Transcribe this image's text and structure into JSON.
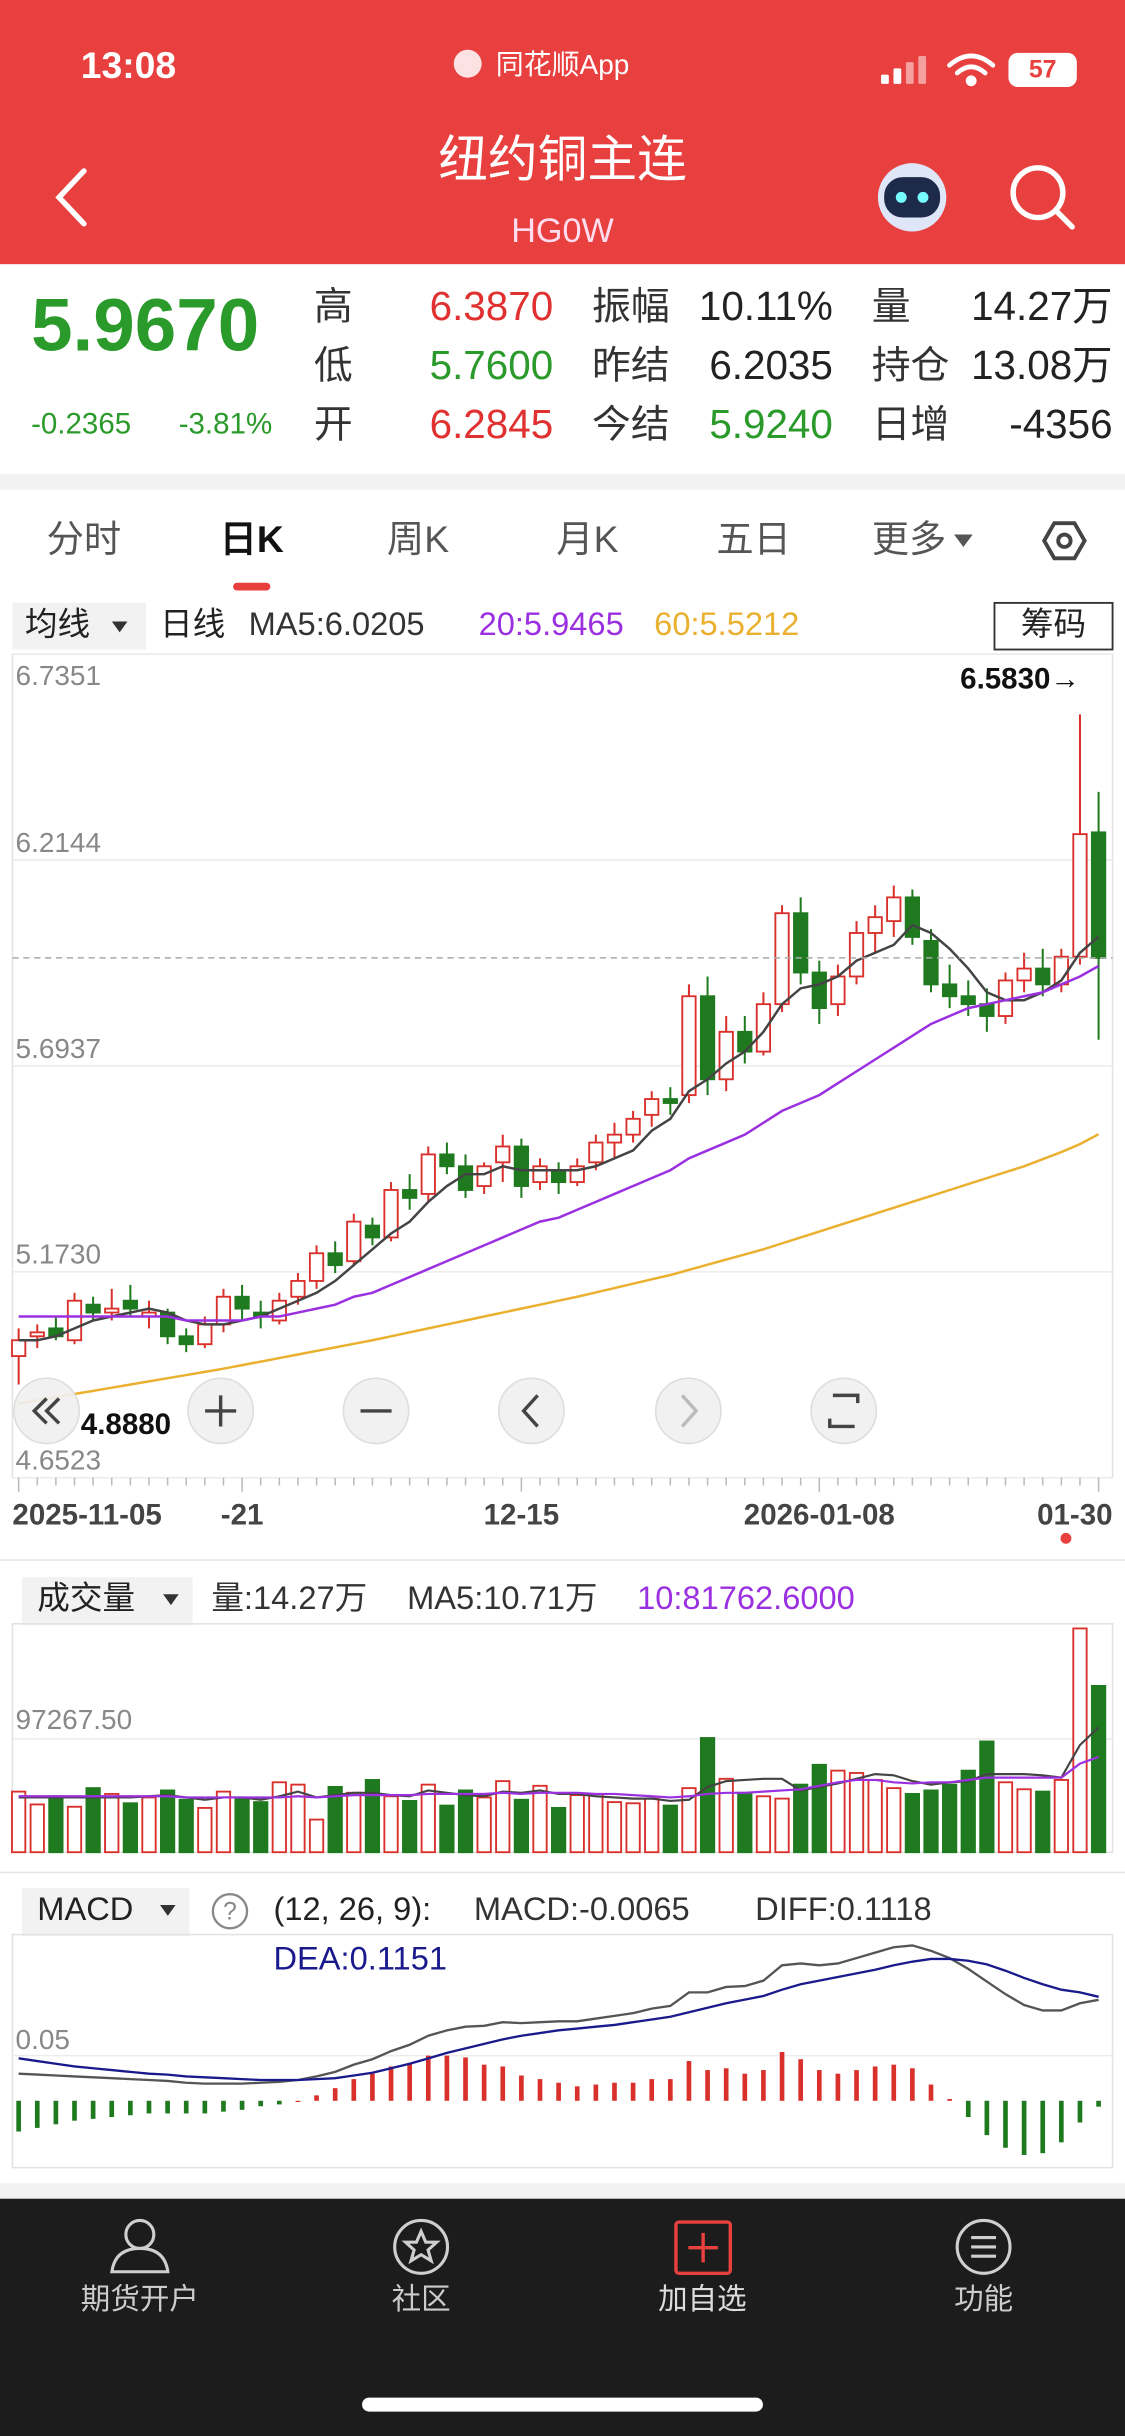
{
  "status_bar": {
    "time": "13:08",
    "app": "同花顺App",
    "battery": "57"
  },
  "header": {
    "title": "纽约铜主连",
    "code": "HG0W"
  },
  "quote": {
    "price": "5.9670",
    "change": "-0.2365",
    "change_pct": "-3.81%",
    "color": "#2a9a2a",
    "columns": [
      [
        {
          "label": "高",
          "value": "6.3870",
          "color": "#e03030"
        },
        {
          "label": "低",
          "value": "5.7600",
          "color": "#2a9a2a"
        },
        {
          "label": "开",
          "value": "6.2845",
          "color": "#e03030"
        }
      ],
      [
        {
          "label": "振幅",
          "value": "10.11%",
          "color": "#222"
        },
        {
          "label": "昨结",
          "value": "6.2035",
          "color": "#222"
        },
        {
          "label": "今结",
          "value": "5.9240",
          "color": "#2a9a2a"
        }
      ],
      [
        {
          "label": "量",
          "value": "14.27万",
          "color": "#222"
        },
        {
          "label": "持仓",
          "value": "13.08万",
          "color": "#222"
        },
        {
          "label": "日增",
          "value": "-4356",
          "color": "#222"
        }
      ]
    ]
  },
  "tabs": [
    "分时",
    "日K",
    "周K",
    "月K",
    "五日",
    "更多"
  ],
  "selected_tab": 1,
  "nav": [
    "期货开户",
    "社区",
    "加自选",
    "功能"
  ],
  "chart_data": [
    {
      "type": "candlestick",
      "ma_label": "均线",
      "period": "日线",
      "chip": "筹码",
      "legend": [
        {
          "text": "MA5:6.0205",
          "color": "#333"
        },
        {
          "text": "20:5.9465",
          "color": "#9b30e0"
        },
        {
          "text": "60:5.5212",
          "color": "#eab030"
        }
      ],
      "high_label": "6.5830→",
      "low_label": "4.8880",
      "up_color": "#d9302c",
      "down_color": "#1f7a1f",
      "ylim": [
        4.6523,
        6.7351
      ],
      "yticks": [
        4.6523,
        {
          "value": 5.173,
          "label": "5.1730"
        },
        5.6937,
        6.2144,
        6.7351
      ],
      "categories": [
        "2025-11-05",
        null,
        null,
        null,
        null,
        null,
        null,
        null,
        null,
        null,
        null,
        null,
        "-21",
        null,
        null,
        null,
        null,
        null,
        null,
        null,
        null,
        null,
        null,
        null,
        null,
        null,
        null,
        "12-15",
        null,
        null,
        null,
        null,
        null,
        null,
        null,
        null,
        null,
        null,
        null,
        null,
        null,
        null,
        null,
        "2026-01-08",
        null,
        null,
        null,
        null,
        null,
        null,
        null,
        null,
        null,
        null,
        null,
        null,
        null,
        null,
        "01-30"
      ],
      "candles": [
        [
          4.96,
          5.03,
          4.888,
          5.0
        ],
        [
          5.01,
          5.04,
          4.98,
          5.02
        ],
        [
          5.03,
          5.06,
          5.0,
          5.01
        ],
        [
          5.0,
          5.12,
          4.99,
          5.1
        ],
        [
          5.09,
          5.11,
          5.05,
          5.07
        ],
        [
          5.07,
          5.13,
          5.05,
          5.08
        ],
        [
          5.1,
          5.14,
          5.06,
          5.08
        ],
        [
          5.06,
          5.1,
          5.03,
          5.07
        ],
        [
          5.07,
          5.08,
          4.99,
          5.01
        ],
        [
          5.01,
          5.03,
          4.97,
          4.99
        ],
        [
          4.99,
          5.06,
          4.98,
          5.04
        ],
        [
          5.04,
          5.13,
          5.02,
          5.11
        ],
        [
          5.11,
          5.14,
          5.05,
          5.08
        ],
        [
          5.07,
          5.1,
          5.03,
          5.06
        ],
        [
          5.05,
          5.12,
          5.04,
          5.1
        ],
        [
          5.11,
          5.17,
          5.09,
          5.15
        ],
        [
          5.15,
          5.24,
          5.13,
          5.22
        ],
        [
          5.22,
          5.25,
          5.17,
          5.19
        ],
        [
          5.2,
          5.32,
          5.19,
          5.3
        ],
        [
          5.29,
          5.31,
          5.24,
          5.26
        ],
        [
          5.26,
          5.4,
          5.25,
          5.38
        ],
        [
          5.38,
          5.42,
          5.33,
          5.36
        ],
        [
          5.37,
          5.49,
          5.35,
          5.47
        ],
        [
          5.47,
          5.5,
          5.42,
          5.44
        ],
        [
          5.44,
          5.47,
          5.36,
          5.38
        ],
        [
          5.39,
          5.45,
          5.37,
          5.44
        ],
        [
          5.45,
          5.52,
          5.4,
          5.49
        ],
        [
          5.49,
          5.51,
          5.36,
          5.39
        ],
        [
          5.4,
          5.46,
          5.38,
          5.44
        ],
        [
          5.43,
          5.45,
          5.37,
          5.4
        ],
        [
          5.4,
          5.46,
          5.39,
          5.44
        ],
        [
          5.45,
          5.52,
          5.43,
          5.5
        ],
        [
          5.5,
          5.55,
          5.46,
          5.52
        ],
        [
          5.52,
          5.58,
          5.5,
          5.56
        ],
        [
          5.57,
          5.63,
          5.54,
          5.61
        ],
        [
          5.61,
          5.64,
          5.57,
          5.6
        ],
        [
          5.62,
          5.9,
          5.6,
          5.87
        ],
        [
          5.87,
          5.92,
          5.62,
          5.66
        ],
        [
          5.66,
          5.82,
          5.63,
          5.78
        ],
        [
          5.78,
          5.82,
          5.7,
          5.73
        ],
        [
          5.73,
          5.88,
          5.72,
          5.85
        ],
        [
          5.85,
          6.1,
          5.83,
          6.08
        ],
        [
          6.08,
          6.12,
          5.9,
          5.93
        ],
        [
          5.93,
          5.96,
          5.8,
          5.84
        ],
        [
          5.85,
          5.95,
          5.82,
          5.92
        ],
        [
          5.92,
          6.06,
          5.9,
          6.03
        ],
        [
          6.03,
          6.1,
          5.98,
          6.07
        ],
        [
          6.06,
          6.15,
          6.02,
          6.12
        ],
        [
          6.12,
          6.14,
          6.0,
          6.02
        ],
        [
          6.01,
          6.04,
          5.88,
          5.9
        ],
        [
          5.9,
          5.95,
          5.84,
          5.87
        ],
        [
          5.87,
          5.91,
          5.82,
          5.85
        ],
        [
          5.85,
          5.89,
          5.78,
          5.82
        ],
        [
          5.82,
          5.93,
          5.8,
          5.91
        ],
        [
          5.91,
          5.98,
          5.88,
          5.94
        ],
        [
          5.94,
          5.99,
          5.87,
          5.9
        ],
        [
          5.9,
          5.99,
          5.88,
          5.97
        ],
        [
          5.97,
          6.583,
          5.95,
          6.28
        ],
        [
          6.2845,
          6.387,
          5.76,
          5.967
        ]
      ],
      "lines": [
        {
          "color": "#444444",
          "values": [
            5.0,
            5.0,
            5.01,
            5.03,
            5.05,
            5.06,
            5.07,
            5.08,
            5.07,
            5.05,
            5.04,
            5.04,
            5.05,
            5.06,
            5.08,
            5.1,
            5.12,
            5.15,
            5.19,
            5.23,
            5.27,
            5.3,
            5.35,
            5.39,
            5.42,
            5.42,
            5.44,
            5.43,
            5.43,
            5.43,
            5.43,
            5.44,
            5.46,
            5.48,
            5.53,
            5.56,
            5.63,
            5.66,
            5.7,
            5.73,
            5.78,
            5.85,
            5.89,
            5.9,
            5.92,
            5.96,
            5.98,
            6.0,
            6.05,
            6.03,
            5.99,
            5.94,
            5.88,
            5.86,
            5.86,
            5.88,
            5.91,
            5.98,
            6.0205
          ]
        },
        {
          "color": "#9b30e0",
          "values": [
            5.06,
            5.06,
            5.06,
            5.06,
            5.06,
            5.06,
            5.06,
            5.06,
            5.06,
            5.05,
            5.05,
            5.05,
            5.05,
            5.06,
            5.06,
            5.07,
            5.08,
            5.09,
            5.11,
            5.12,
            5.14,
            5.16,
            5.18,
            5.2,
            5.22,
            5.24,
            5.26,
            5.28,
            5.3,
            5.31,
            5.33,
            5.35,
            5.37,
            5.39,
            5.41,
            5.43,
            5.46,
            5.48,
            5.5,
            5.52,
            5.55,
            5.58,
            5.6,
            5.62,
            5.65,
            5.68,
            5.71,
            5.74,
            5.77,
            5.8,
            5.82,
            5.84,
            5.85,
            5.86,
            5.87,
            5.88,
            5.9,
            5.92,
            5.9465
          ]
        },
        {
          "color": "#eab030",
          "values": [
            4.84,
            4.848,
            4.856,
            4.864,
            4.872,
            4.88,
            4.888,
            4.896,
            4.904,
            4.912,
            4.92,
            4.928,
            4.937,
            4.946,
            4.955,
            4.964,
            4.973,
            4.982,
            4.991,
            5.0,
            5.01,
            5.02,
            5.03,
            5.04,
            5.05,
            5.06,
            5.07,
            5.08,
            5.09,
            5.1,
            5.11,
            5.121,
            5.132,
            5.143,
            5.154,
            5.165,
            5.178,
            5.191,
            5.204,
            5.217,
            5.23,
            5.245,
            5.26,
            5.275,
            5.29,
            5.305,
            5.32,
            5.335,
            5.35,
            5.365,
            5.38,
            5.395,
            5.41,
            5.425,
            5.44,
            5.458,
            5.476,
            5.496,
            5.5212
          ]
        }
      ]
    },
    {
      "type": "bar",
      "title": "成交量",
      "legend": [
        {
          "text": "量:14.27万",
          "color": "#333"
        },
        {
          "text": "MA5:10.71万",
          "color": "#333"
        },
        {
          "text": "10:81762.6000",
          "color": "#9b30e0"
        }
      ],
      "ylim": [
        0,
        196000
      ],
      "yticks": [
        {
          "value": 97267.5,
          "label": "97267.50"
        }
      ],
      "values": [
        52000,
        41000,
        48000,
        39000,
        55000,
        50000,
        42000,
        47000,
        53000,
        45000,
        38000,
        52000,
        46000,
        43000,
        60000,
        58000,
        28000,
        56000,
        51000,
        62000,
        48000,
        44000,
        58000,
        40000,
        53000,
        47000,
        61000,
        45000,
        57000,
        38000,
        49000,
        50000,
        43000,
        42000,
        46000,
        40000,
        55000,
        98000,
        63000,
        51000,
        48000,
        46000,
        58000,
        75000,
        70000,
        68000,
        62000,
        55000,
        50000,
        53000,
        58000,
        70000,
        95000,
        60000,
        54000,
        52000,
        62000,
        192000,
        142700
      ],
      "lines": [
        {
          "color": "#444444",
          "values": [
            47000,
            47000,
            47000,
            47000,
            47000,
            47000,
            47000,
            48000,
            49000,
            47000,
            45000,
            47000,
            47000,
            45000,
            48000,
            52000,
            47000,
            49000,
            51000,
            51000,
            49000,
            48000,
            53000,
            51000,
            49000,
            48000,
            52000,
            51000,
            53000,
            50000,
            50000,
            48000,
            47000,
            46000,
            46000,
            44000,
            45000,
            56000,
            61000,
            62000,
            63000,
            63000,
            53000,
            56000,
            59000,
            63000,
            67000,
            66000,
            61000,
            58000,
            60000,
            61000,
            67000,
            67000,
            67000,
            66000,
            64000,
            92000,
            107100
          ]
        },
        {
          "color": "#9b30e0",
          "values": [
            48000,
            48000,
            48000,
            48000,
            48000,
            48000,
            48000,
            48000,
            48000,
            47000,
            47000,
            47000,
            47000,
            47000,
            47000,
            48000,
            47000,
            48000,
            49000,
            49000,
            49000,
            49000,
            50000,
            50000,
            50000,
            50000,
            51000,
            50000,
            51000,
            51000,
            51000,
            50000,
            50000,
            49000,
            48000,
            47000,
            48000,
            50000,
            51000,
            51000,
            52000,
            53000,
            54000,
            57000,
            60000,
            62000,
            62000,
            60000,
            59000,
            60000,
            60000,
            62000,
            64000,
            64000,
            64000,
            64000,
            64000,
            76000,
            81762.6
          ]
        }
      ]
    },
    {
      "type": "bar",
      "title": "MACD",
      "help": "?",
      "params": "(12, 26, 9):",
      "legend": [
        {
          "text": "MACD:-0.0065",
          "color": "#333"
        },
        {
          "text": "DIFF:0.1118",
          "color": "#333"
        }
      ],
      "dea_text": "DEA:0.1151",
      "dea_color": "#1a1a8c",
      "ylim": [
        -0.074,
        0.184
      ],
      "yticks": [
        0.05
      ],
      "values": [
        -0.034,
        -0.03,
        -0.026,
        -0.022,
        -0.02,
        -0.018,
        -0.016,
        -0.014,
        -0.014,
        -0.014,
        -0.014,
        -0.012,
        -0.01,
        -0.006,
        -0.004,
        0.0,
        0.006,
        0.014,
        0.024,
        0.03,
        0.038,
        0.042,
        0.05,
        0.05,
        0.048,
        0.04,
        0.038,
        0.028,
        0.024,
        0.02,
        0.016,
        0.018,
        0.02,
        0.02,
        0.024,
        0.024,
        0.044,
        0.034,
        0.036,
        0.03,
        0.034,
        0.054,
        0.046,
        0.034,
        0.03,
        0.034,
        0.038,
        0.04,
        0.036,
        0.018,
        0.002,
        -0.018,
        -0.038,
        -0.052,
        -0.06,
        -0.058,
        -0.046,
        -0.024,
        -0.0065
      ],
      "lines": [
        {
          "color": "#555555",
          "values": [
            0.03,
            0.029,
            0.028,
            0.027,
            0.026,
            0.025,
            0.024,
            0.023,
            0.022,
            0.02,
            0.019,
            0.019,
            0.019,
            0.02,
            0.021,
            0.023,
            0.027,
            0.032,
            0.04,
            0.046,
            0.055,
            0.062,
            0.072,
            0.078,
            0.082,
            0.083,
            0.087,
            0.086,
            0.087,
            0.088,
            0.088,
            0.091,
            0.094,
            0.097,
            0.102,
            0.105,
            0.12,
            0.12,
            0.126,
            0.127,
            0.133,
            0.15,
            0.152,
            0.15,
            0.152,
            0.158,
            0.164,
            0.17,
            0.172,
            0.166,
            0.158,
            0.146,
            0.132,
            0.118,
            0.106,
            0.1,
            0.1,
            0.108,
            0.1118
          ]
        },
        {
          "color": "#1a1a8c",
          "values": [
            0.047,
            0.044,
            0.041,
            0.038,
            0.036,
            0.034,
            0.032,
            0.03,
            0.029,
            0.027,
            0.026,
            0.025,
            0.024,
            0.023,
            0.023,
            0.023,
            0.024,
            0.025,
            0.028,
            0.031,
            0.036,
            0.041,
            0.047,
            0.053,
            0.058,
            0.063,
            0.068,
            0.072,
            0.075,
            0.078,
            0.08,
            0.082,
            0.084,
            0.087,
            0.09,
            0.093,
            0.098,
            0.103,
            0.108,
            0.112,
            0.116,
            0.123,
            0.129,
            0.133,
            0.137,
            0.141,
            0.145,
            0.15,
            0.154,
            0.157,
            0.157,
            0.155,
            0.151,
            0.144,
            0.136,
            0.129,
            0.123,
            0.12,
            0.1151
          ]
        }
      ]
    }
  ]
}
